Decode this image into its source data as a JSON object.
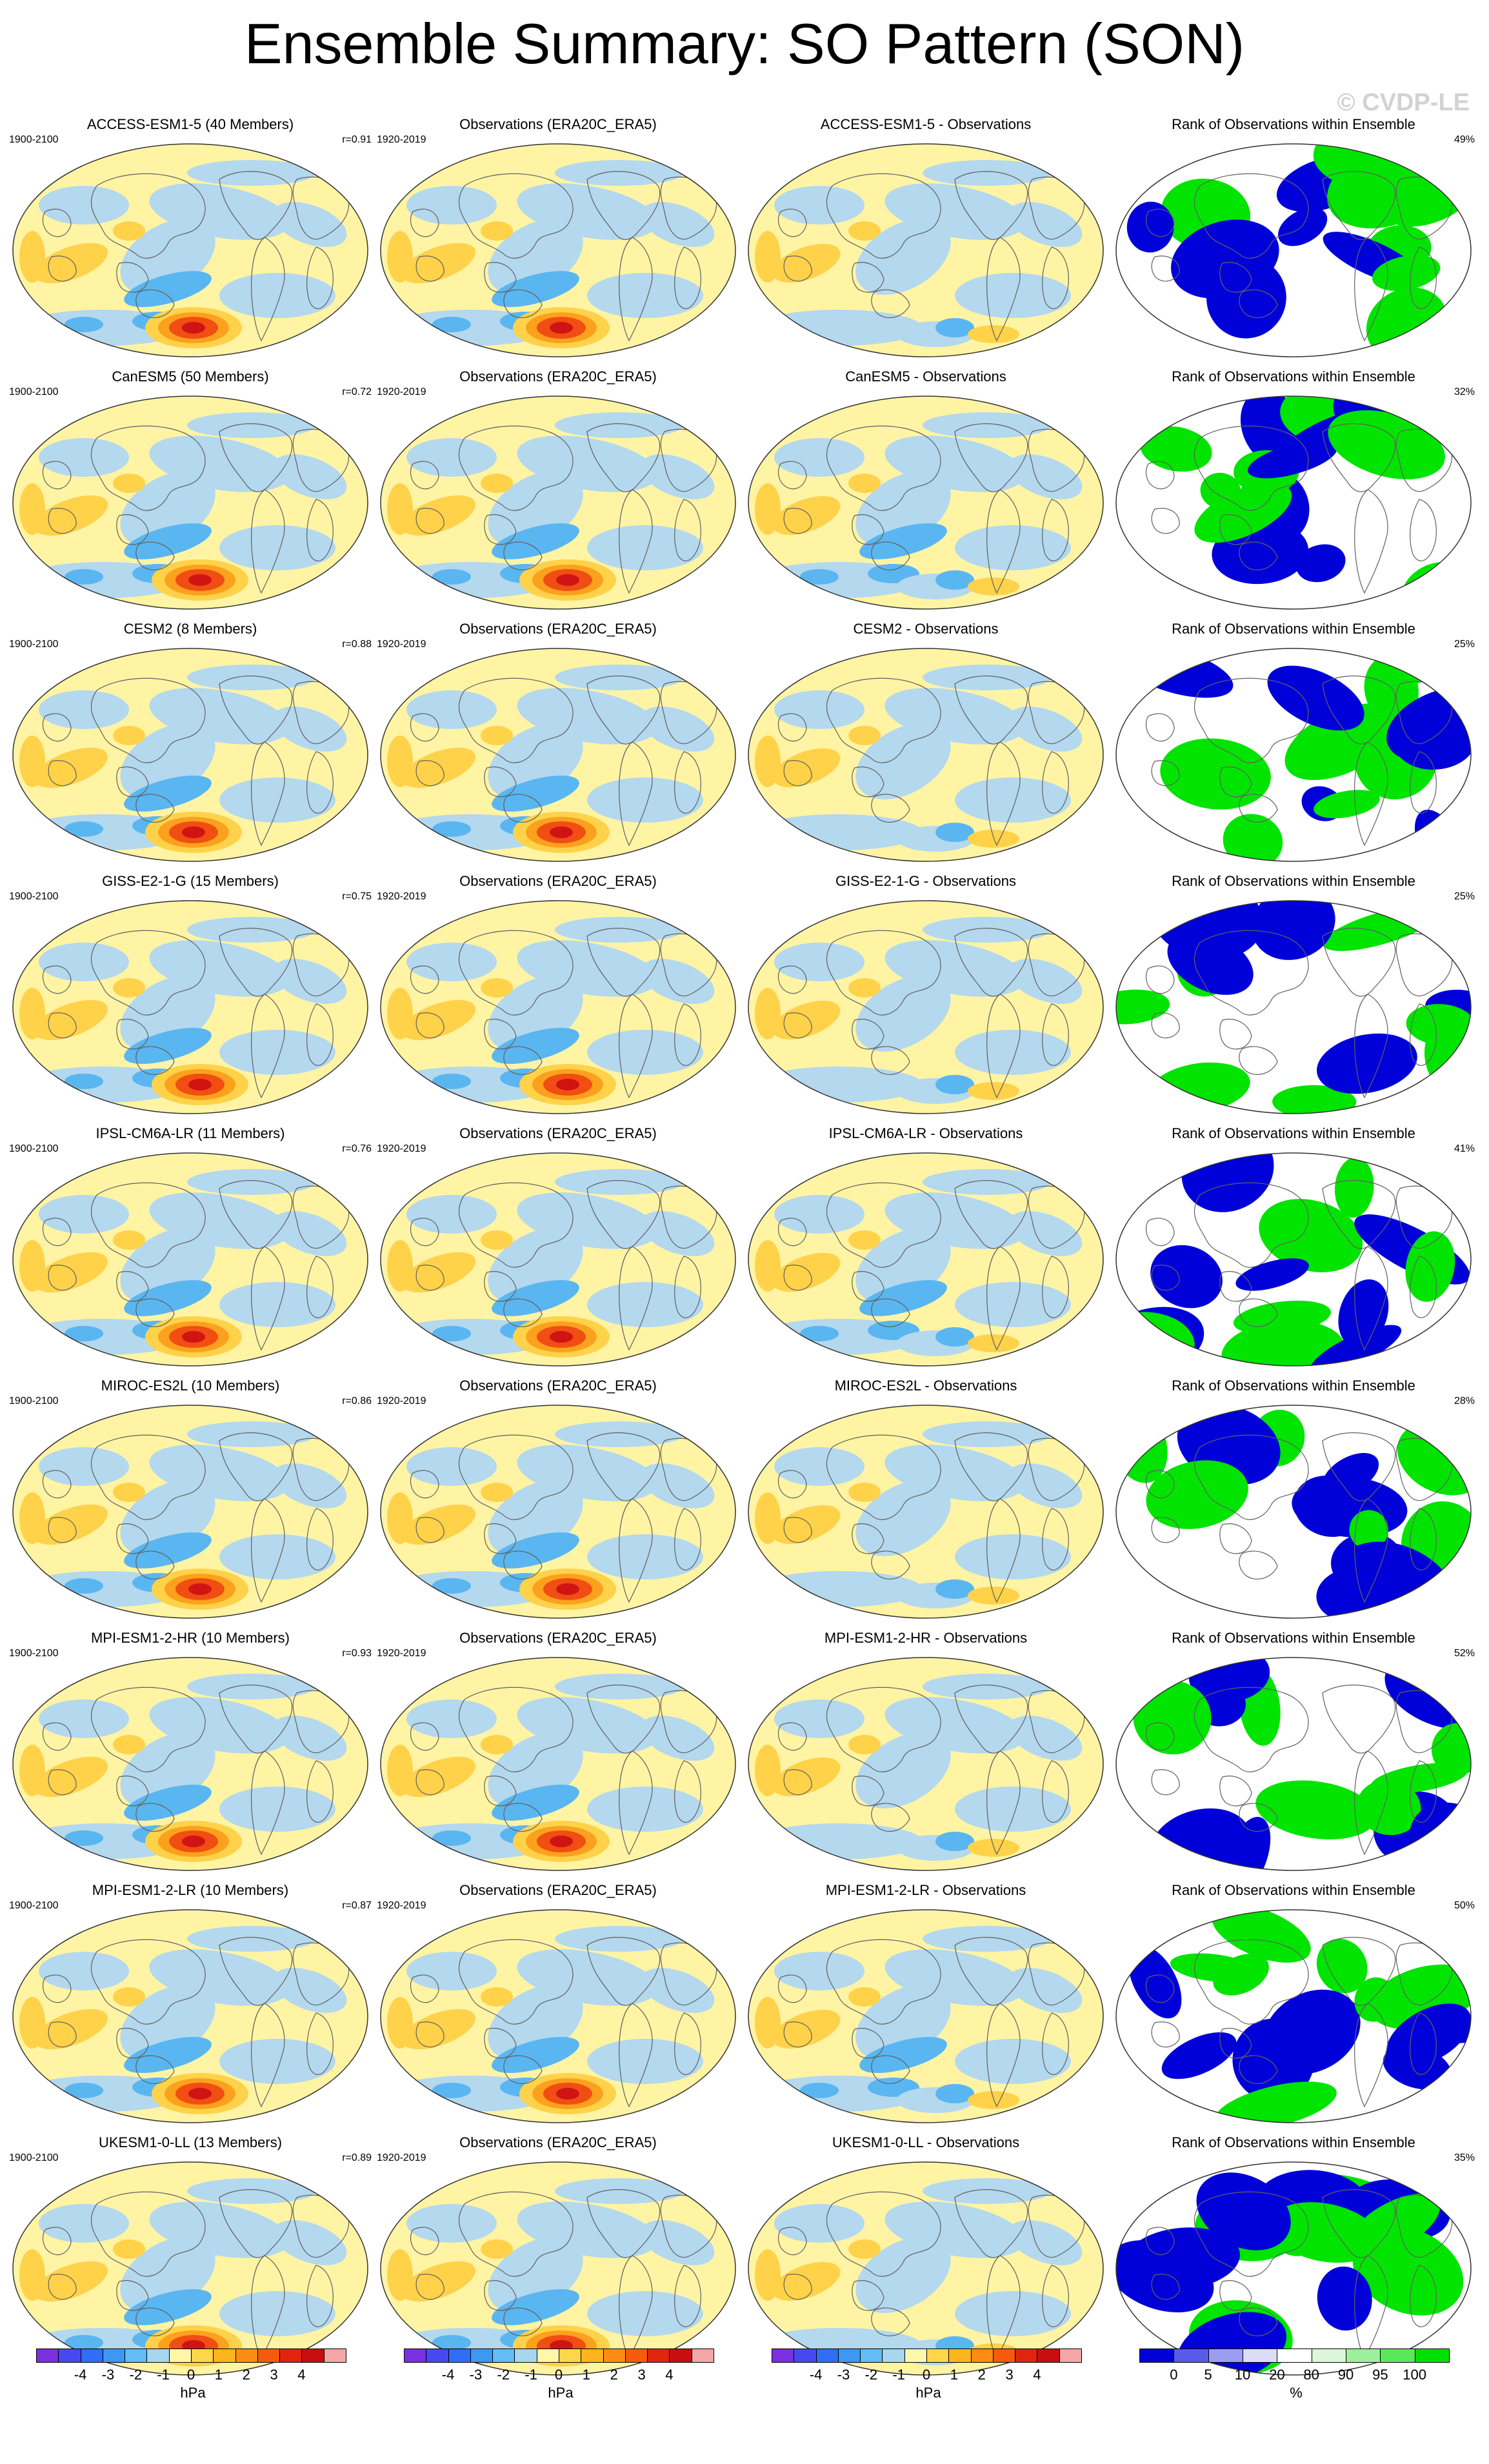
{
  "header": {
    "title": "Ensemble Summary: SO Pattern (SON)",
    "watermark": "© CVDP-LE"
  },
  "rows": [
    {
      "model": "ACCESS-ESM1-5 (40 Members)",
      "period": "1900-2100",
      "r": "r=0.91",
      "obs": "Observations (ERA20C_ERA5)",
      "obs_period": "1920-2019",
      "diff": "ACCESS-ESM1-5 - Observations",
      "rank": "Rank of Observations within Ensemble",
      "rank_pct": "49%"
    },
    {
      "model": "CanESM5 (50 Members)",
      "period": "1900-2100",
      "r": "r=0.72",
      "obs": "Observations (ERA20C_ERA5)",
      "obs_period": "1920-2019",
      "diff": "CanESM5 - Observations",
      "rank": "Rank of Observations within Ensemble",
      "rank_pct": "32%"
    },
    {
      "model": "CESM2 (8 Members)",
      "period": "1900-2100",
      "r": "r=0.88",
      "obs": "Observations (ERA20C_ERA5)",
      "obs_period": "1920-2019",
      "diff": "CESM2 - Observations",
      "rank": "Rank of Observations within Ensemble",
      "rank_pct": "25%"
    },
    {
      "model": "GISS-E2-1-G (15 Members)",
      "period": "1900-2100",
      "r": "r=0.75",
      "obs": "Observations (ERA20C_ERA5)",
      "obs_period": "1920-2019",
      "diff": "GISS-E2-1-G - Observations",
      "rank": "Rank of Observations within Ensemble",
      "rank_pct": "25%"
    },
    {
      "model": "IPSL-CM6A-LR (11 Members)",
      "period": "1900-2100",
      "r": "r=0.76",
      "obs": "Observations (ERA20C_ERA5)",
      "obs_period": "1920-2019",
      "diff": "IPSL-CM6A-LR - Observations",
      "rank": "Rank of Observations within Ensemble",
      "rank_pct": "41%"
    },
    {
      "model": "MIROC-ES2L (10 Members)",
      "period": "1900-2100",
      "r": "r=0.86",
      "obs": "Observations (ERA20C_ERA5)",
      "obs_period": "1920-2019",
      "diff": "MIROC-ES2L - Observations",
      "rank": "Rank of Observations within Ensemble",
      "rank_pct": "28%"
    },
    {
      "model": "MPI-ESM1-2-HR (10 Members)",
      "period": "1900-2100",
      "r": "r=0.93",
      "obs": "Observations (ERA20C_ERA5)",
      "obs_period": "1920-2019",
      "diff": "MPI-ESM1-2-HR - Observations",
      "rank": "Rank of Observations within Ensemble",
      "rank_pct": "52%"
    },
    {
      "model": "MPI-ESM1-2-LR (10 Members)",
      "period": "1900-2100",
      "r": "r=0.87",
      "obs": "Observations (ERA20C_ERA5)",
      "obs_period": "1920-2019",
      "diff": "MPI-ESM1-2-LR - Observations",
      "rank": "Rank of Observations within Ensemble",
      "rank_pct": "50%"
    },
    {
      "model": "UKESM1-0-LL (13 Members)",
      "period": "1900-2100",
      "r": "r=0.89",
      "obs": "Observations (ERA20C_ERA5)",
      "obs_period": "1920-2019",
      "diff": "UKESM1-0-LL - Observations",
      "rank": "Rank of Observations within Ensemble",
      "rank_pct": "35%"
    }
  ],
  "colorbars": {
    "hpa": {
      "unit": "hPa",
      "ticks": [
        "-4",
        "-3",
        "-2",
        "-1",
        "0",
        "1",
        "2",
        "3",
        "4"
      ],
      "colors": [
        "#7a2fe0",
        "#4848f0",
        "#2f6ef5",
        "#3c98f0",
        "#62bdf2",
        "#a7d6ef",
        "#fff6a8",
        "#ffd64a",
        "#ffb41e",
        "#fd8c12",
        "#f55a0e",
        "#e0240d",
        "#c80e12",
        "#f4a6a6"
      ]
    },
    "pct": {
      "unit": "%",
      "ticks": [
        "0",
        "5",
        "10",
        "20",
        "80",
        "90",
        "95",
        "100"
      ],
      "colors": [
        "#0000d8",
        "#5a5ae8",
        "#9c9cf0",
        "#dcdcf6",
        "#ffffff",
        "#dcf6dc",
        "#9cf09c",
        "#5ae85a",
        "#00e000"
      ]
    }
  },
  "map_colors": {
    "ocean": "#b4d8ee",
    "pos_light": "#fff4a4",
    "pos": "#ffd24a",
    "pos_mid": "#fca11d",
    "pos_high": "#f04e12",
    "pos_peak": "#d01414",
    "neg": "#5ab6f0",
    "neg_mid": "#2f7cf0",
    "rank_low": "#0000d8",
    "rank_high": "#00e400",
    "rank_mid": "#ffffff",
    "coast": "#606060"
  }
}
